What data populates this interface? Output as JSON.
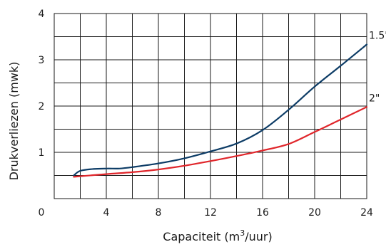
{
  "chart_data": {
    "type": "line",
    "xlabel": "Capaciteit (m",
    "xlabel_sup": "3",
    "xlabel_tail": "/uur)",
    "ylabel": "Drukverliezen (mwk)",
    "xlim": [
      0,
      24
    ],
    "ylim": [
      0,
      4
    ],
    "x_ticks": [
      "0",
      "4",
      "8",
      "12",
      "16",
      "20",
      "24"
    ],
    "y_ticks": [
      "1",
      "2",
      "3",
      "4"
    ],
    "grid": true,
    "series": [
      {
        "name": "1.5\"",
        "color": "#0d3c66",
        "x": [
          1.5,
          2.0,
          3.0,
          4.0,
          5.0,
          6.0,
          8.0,
          10.0,
          12.0,
          14.0,
          16.0,
          18.0,
          20.0,
          22.0,
          24.0
        ],
        "y": [
          0.5,
          0.6,
          0.64,
          0.65,
          0.65,
          0.68,
          0.76,
          0.87,
          1.02,
          1.19,
          1.48,
          1.92,
          2.42,
          2.87,
          3.33
        ]
      },
      {
        "name": "2\"",
        "color": "#e0262b",
        "x": [
          1.5,
          4.0,
          6.0,
          8.0,
          10.0,
          12.0,
          14.0,
          16.0,
          18.0,
          20.0,
          22.0,
          24.0
        ],
        "y": [
          0.47,
          0.53,
          0.57,
          0.63,
          0.71,
          0.81,
          0.92,
          1.04,
          1.18,
          1.44,
          1.71,
          1.98
        ]
      }
    ]
  }
}
